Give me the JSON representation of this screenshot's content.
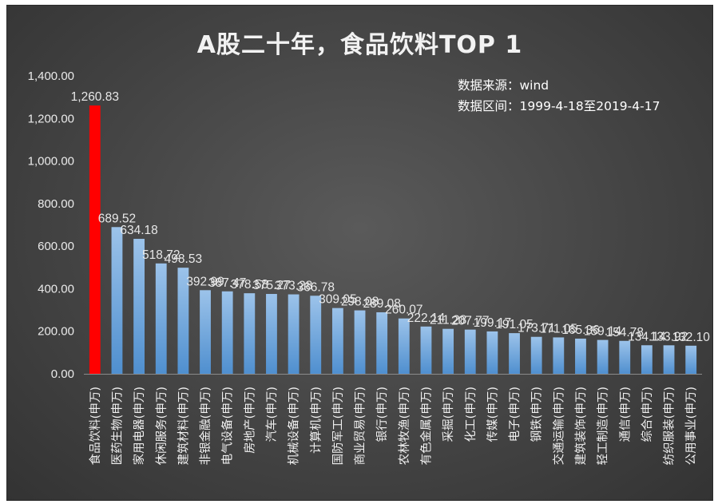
{
  "title": "A股二十年，食品饮料TOP 1",
  "notes": {
    "source": "数据来源：wind",
    "period": "数据区间：1999-4-18至2019-4-17"
  },
  "chart_data": {
    "type": "bar",
    "title": "A股二十年，食品饮料TOP 1",
    "categories": [
      "食品饮料(申万)",
      "医药生物(申万)",
      "家用电器(申万)",
      "休闲服务(申万)",
      "建筑材料(申万)",
      "非银金融(申万)",
      "电气设备(申万)",
      "房地产(申万)",
      "汽车(申万)",
      "机械设备(申万)",
      "计算机(申万)",
      "国防军工(申万)",
      "商业贸易(申万)",
      "银行(申万)",
      "农林牧渔(申万)",
      "有色金属(申万)",
      "采掘(申万)",
      "化工(申万)",
      "传媒(申万)",
      "电子(申万)",
      "钢铁(申万)",
      "交通运输(申万)",
      "建筑装饰(申万)",
      "轻工制造(申万)",
      "通信(申万)",
      "综合(申万)",
      "纺织服装(申万)",
      "公用事业(申万)"
    ],
    "values": [
      1260.83,
      689.52,
      634.18,
      518.72,
      498.53,
      392.99,
      387.47,
      378.58,
      375.27,
      373.28,
      366.78,
      309.05,
      298.08,
      289.08,
      260.07,
      222.14,
      211.28,
      207.77,
      199.17,
      191.05,
      173.71,
      171.05,
      165.36,
      159.14,
      154.78,
      134.14,
      133.92,
      132.1
    ],
    "data_labels": [
      "1,260.83",
      "689.52",
      "634.18",
      "518.72",
      "498.53",
      "392.99",
      "387.47",
      "378.58",
      "375.27",
      "373.28",
      "366.78",
      "309.05",
      "298.08",
      "289.08",
      "260.07",
      "222.14",
      "211.28",
      "207.77",
      "199.17",
      "191.05",
      "173.71",
      "171.05",
      "165.36",
      "159.14",
      "154.78",
      "134.14",
      "133.92",
      "132.10"
    ],
    "highlight_index": 0,
    "ylim": [
      0,
      1400
    ],
    "yticks": [
      0,
      200,
      400,
      600,
      800,
      1000,
      1200,
      1400
    ],
    "ytick_labels": [
      "0.00",
      "200.00",
      "400.00",
      "600.00",
      "800.00",
      "1,000.00",
      "1,200.00",
      "1,400.00"
    ],
    "grid": false,
    "colors": {
      "highlight": "#ff0000",
      "bar": "#5b9bd5",
      "bar_light": "#8bb8e6",
      "background": "#404040"
    }
  }
}
